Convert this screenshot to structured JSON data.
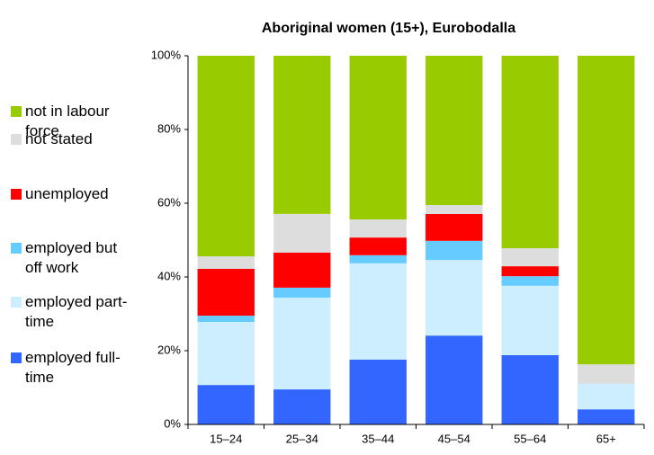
{
  "chart_data": {
    "type": "bar",
    "stacked": true,
    "title": "Aboriginal women (15+), Eurobodalla",
    "categories": [
      "15–24",
      "25–34",
      "35–44",
      "45–54",
      "55–64",
      "65+"
    ],
    "series": [
      {
        "name": "employed full-time",
        "color": "#3366ff",
        "values": [
          10.7,
          9.5,
          17.6,
          24.1,
          18.8,
          4.1
        ]
      },
      {
        "name": "employed part-time",
        "color": "#cceeff",
        "values": [
          17.1,
          24.9,
          26.1,
          20.5,
          18.8,
          6.9
        ]
      },
      {
        "name": "employed but off work",
        "color": "#66ccff",
        "values": [
          1.7,
          2.7,
          2.2,
          5.2,
          2.6,
          0
        ]
      },
      {
        "name": "unemployed",
        "color": "#ff0000",
        "values": [
          12.7,
          9.5,
          4.8,
          7.3,
          2.7,
          0
        ]
      },
      {
        "name": "not stated",
        "color": "#dddddd",
        "values": [
          3.4,
          10.5,
          4.9,
          2.4,
          4.9,
          5.3
        ]
      },
      {
        "name": "not in labour force",
        "color": "#99cc00",
        "values": [
          54.4,
          42.9,
          44.4,
          40.5,
          52.2,
          83.7
        ]
      }
    ],
    "ylim": [
      0,
      100
    ],
    "yticks": [
      {
        "value": 0,
        "label": "0%"
      },
      {
        "value": 20,
        "label": "20%"
      },
      {
        "value": 40,
        "label": "40%"
      },
      {
        "value": 60,
        "label": "60%"
      },
      {
        "value": 80,
        "label": "80%"
      },
      {
        "value": 100,
        "label": "100%"
      }
    ],
    "legend": "left"
  }
}
